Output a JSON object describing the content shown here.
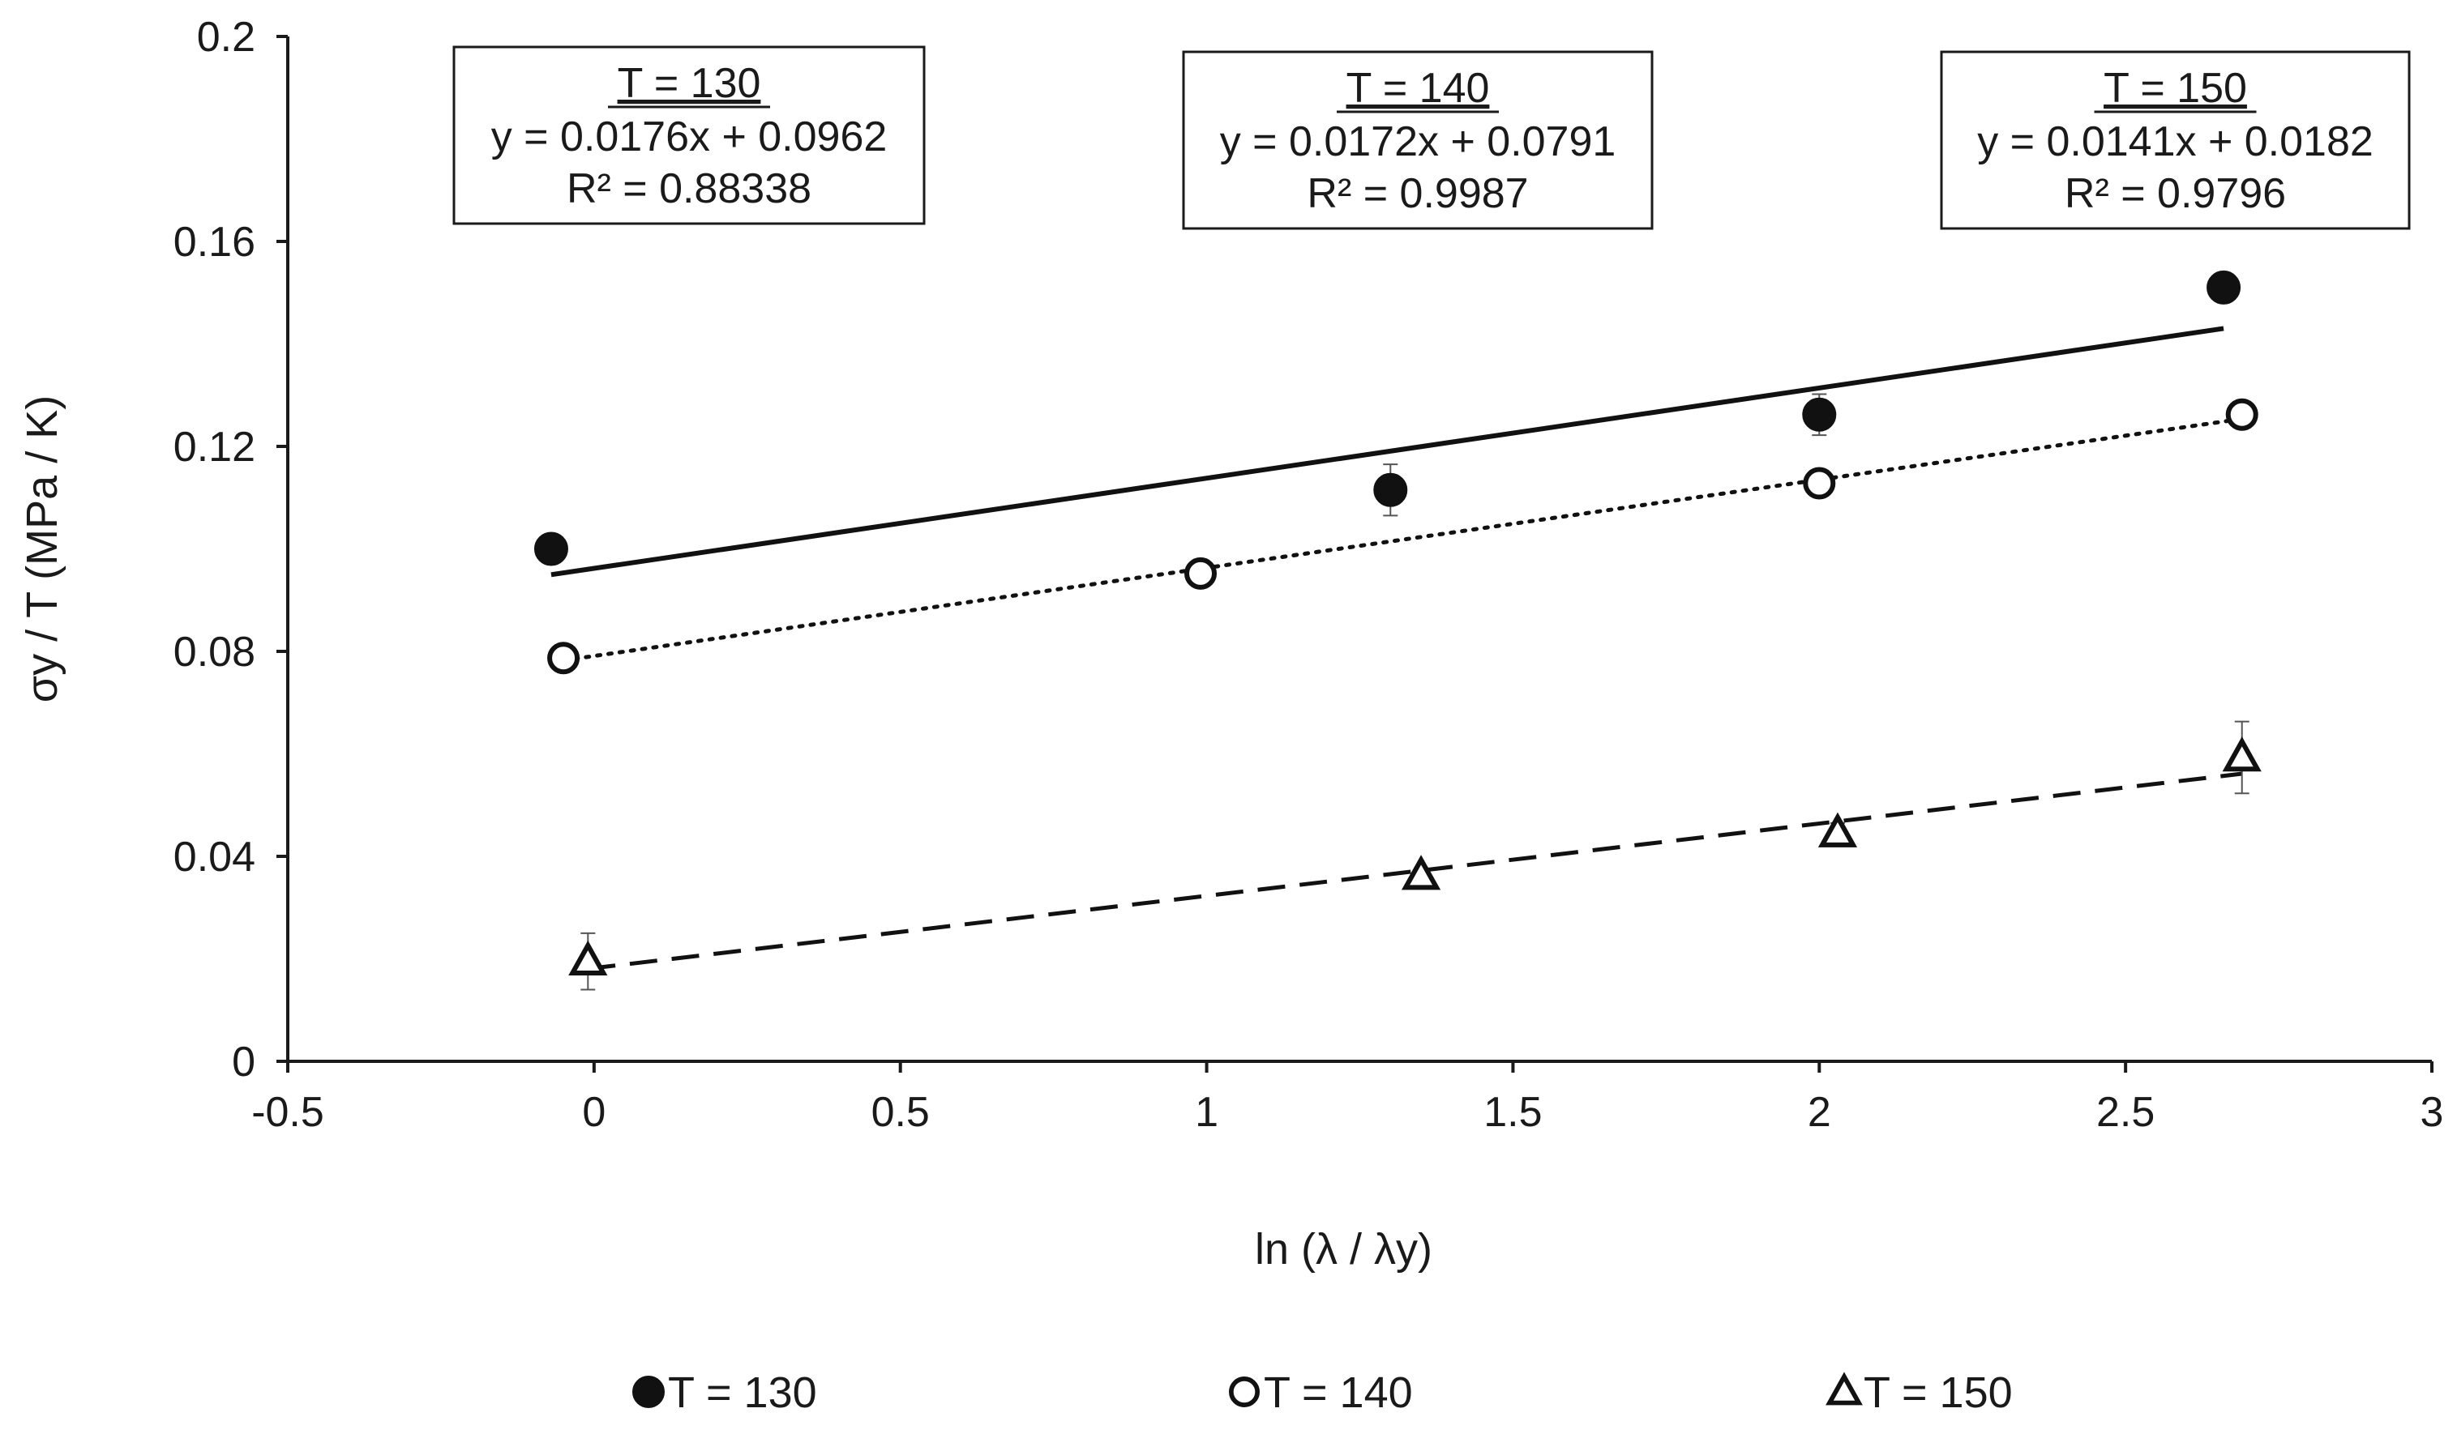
{
  "chart_data": {
    "type": "scatter",
    "title": "",
    "xlabel": "ln (λ / λy)",
    "ylabel": "σy / T (MPa / K)",
    "xlim": [
      -0.5,
      3
    ],
    "ylim": [
      0,
      0.2
    ],
    "xticks": [
      -0.5,
      0,
      0.5,
      1,
      1.5,
      2,
      2.5,
      3
    ],
    "xtick_labels": [
      "-0.5",
      "0",
      "0.5",
      "1",
      "1.5",
      "2",
      "2.5",
      "3"
    ],
    "yticks": [
      0,
      0.04,
      0.08,
      0.12,
      0.16,
      0.2
    ],
    "ytick_labels": [
      "0",
      "0.04",
      "0.08",
      "0.12",
      "0.16",
      "0.2"
    ],
    "grid": false,
    "legend_position": "bottom",
    "series": [
      {
        "name": "T = 130",
        "marker": "filled-circle",
        "line_style": "solid",
        "x": [
          -0.07,
          1.3,
          2.0,
          2.66
        ],
        "y": [
          0.1,
          0.1115,
          0.1262,
          0.151
        ],
        "err": [
          0.0015,
          0.005,
          0.004,
          0.0015
        ],
        "trendline": {
          "slope": 0.0176,
          "intercept": 0.0962,
          "x_range": [
            -0.07,
            2.66
          ],
          "label_title": "T = 130",
          "equation": "y = 0.0176x + 0.0962",
          "r2_label": "R² = 0.88338"
        }
      },
      {
        "name": "T = 140",
        "marker": "open-circle",
        "line_style": "dotted",
        "x": [
          -0.05,
          0.99,
          2.0,
          2.69
        ],
        "y": [
          0.0787,
          0.0952,
          0.1128,
          0.1262
        ],
        "err": [
          0.001,
          0.001,
          0.0015,
          0.001
        ],
        "trendline": {
          "slope": 0.0172,
          "intercept": 0.0791,
          "x_range": [
            -0.05,
            2.69
          ],
          "label_title": "T = 140",
          "equation": "y = 0.0172x + 0.0791",
          "r2_label": "R² = 0.9987"
        }
      },
      {
        "name": "T = 150",
        "marker": "open-triangle",
        "line_style": "dashed",
        "x": [
          -0.01,
          1.35,
          2.03,
          2.69
        ],
        "y": [
          0.0195,
          0.0362,
          0.0445,
          0.0593
        ],
        "err": [
          0.0055,
          0.0015,
          0.002,
          0.007
        ],
        "trendline": {
          "slope": 0.0141,
          "intercept": 0.0182,
          "x_range": [
            -0.01,
            2.69
          ],
          "label_title": "T = 150",
          "equation": "y = 0.0141x + 0.0182",
          "r2_label": "R² = 0.9796"
        }
      }
    ]
  }
}
